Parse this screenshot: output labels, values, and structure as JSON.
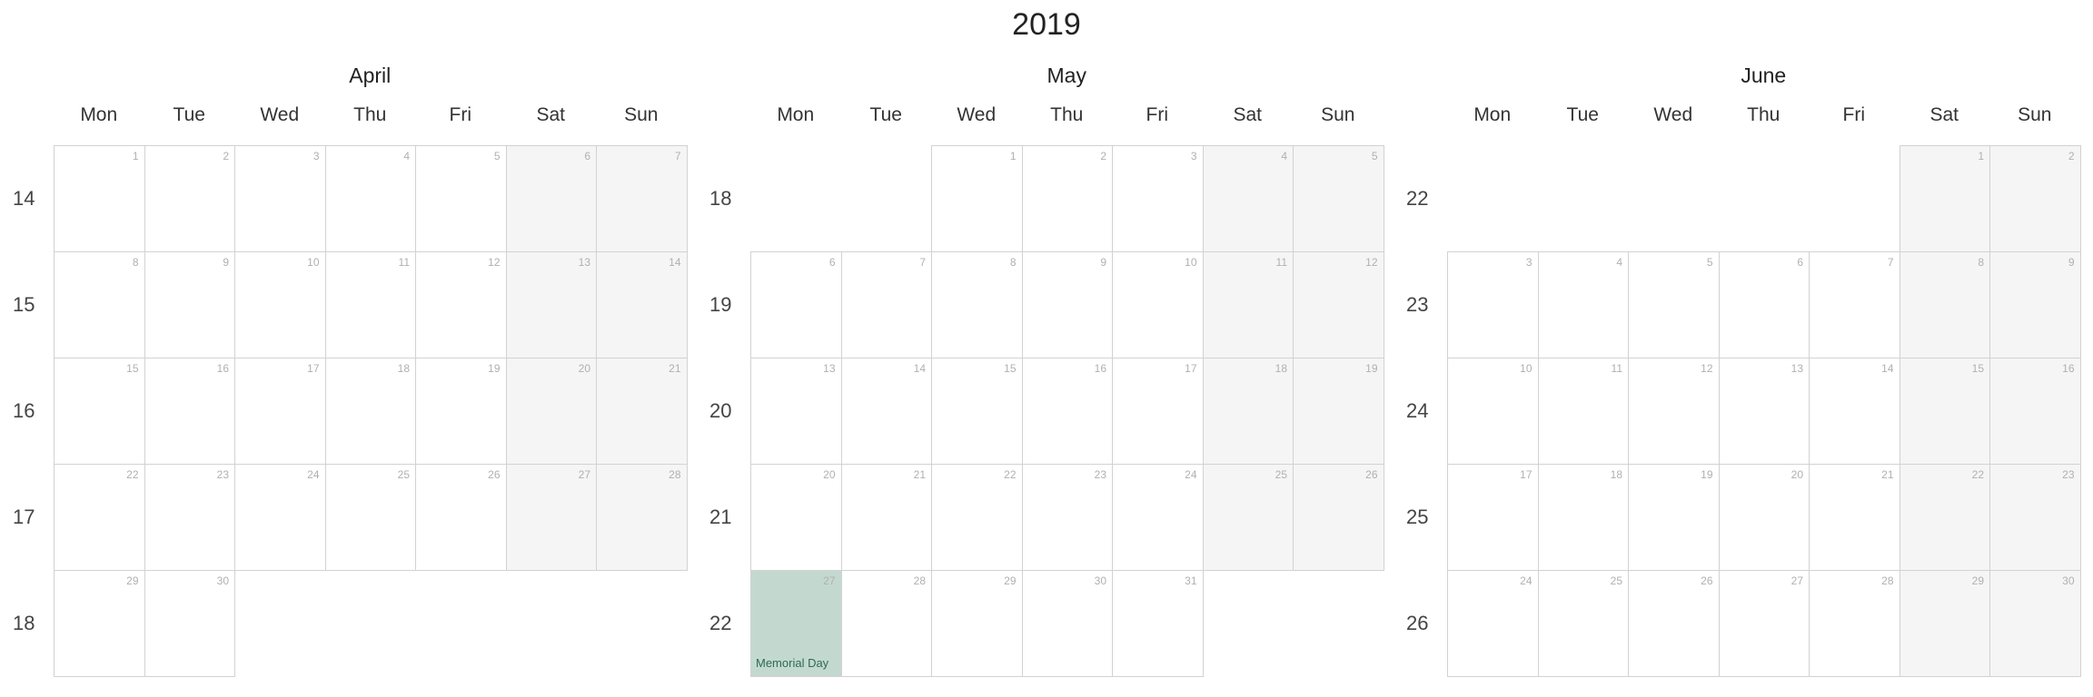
{
  "year_title": "2019",
  "weekday_labels": [
    "Mon",
    "Tue",
    "Wed",
    "Thu",
    "Fri",
    "Sat",
    "Sun"
  ],
  "months": [
    {
      "name": "April",
      "first_weekday": 0,
      "days_in_month": 30,
      "week_numbers": [
        "14",
        "15",
        "16",
        "17",
        "18"
      ]
    },
    {
      "name": "May",
      "first_weekday": 2,
      "days_in_month": 31,
      "week_numbers": [
        "18",
        "19",
        "20",
        "21",
        "22"
      ]
    },
    {
      "name": "June",
      "first_weekday": 5,
      "days_in_month": 30,
      "week_numbers": [
        "22",
        "23",
        "24",
        "25",
        "26"
      ]
    }
  ],
  "events": [
    {
      "month": "May",
      "day": 27,
      "label": "Memorial Day"
    }
  ],
  "colors": {
    "weekend_bg": "#f5f5f5",
    "holiday_bg": "#c3d9cf",
    "holiday_text": "#2e6b50",
    "border": "#d2d2d2"
  }
}
